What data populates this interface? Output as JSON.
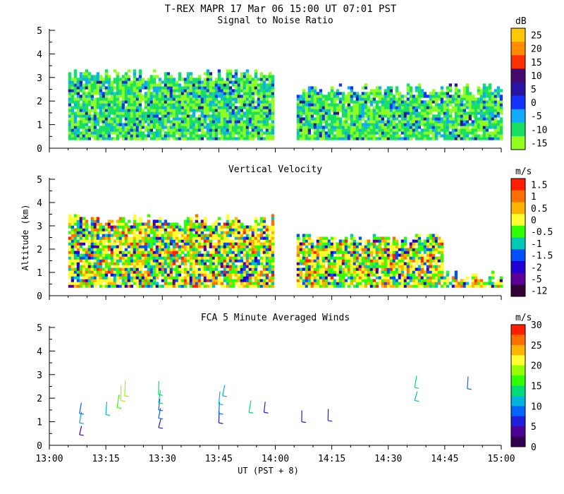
{
  "header": {
    "title": "T-REX   MAPR 17 Mar 06   15:00 UT   07:01   PST"
  },
  "chart_data": [
    {
      "type": "heatmap",
      "title": "Signal to Noise Ratio",
      "ylabel": "",
      "xlabel": "",
      "ylim": [
        0,
        5
      ],
      "yticks": [
        "0",
        "1",
        "2",
        "3",
        "4",
        "5"
      ],
      "colorbar": {
        "unit": "dB",
        "labels": [
          "25",
          "20",
          "15",
          "10",
          "5",
          "0",
          "-5",
          "-10",
          "-15"
        ],
        "colors": [
          "#ffc800",
          "#ff8c00",
          "#ff3000",
          "#460a6e",
          "#2814a0",
          "#1432ff",
          "#10aaff",
          "#18e064",
          "#90ff20"
        ]
      },
      "data_gaps": [
        [
          "13:59",
          "14:05"
        ]
      ],
      "coverage": {
        "top_km": 3.2,
        "bottom_km": 0.35,
        "start": "13:05",
        "end": "15:00"
      },
      "dominant_classes": [
        "-15",
        "-10",
        "-5",
        "0",
        "5"
      ]
    },
    {
      "type": "heatmap",
      "title": "Vertical Velocity",
      "ylabel": "Altitude (km)",
      "xlabel": "",
      "ylim": [
        0,
        5
      ],
      "yticks": [
        "0",
        "1",
        "2",
        "3",
        "4",
        "5"
      ],
      "colorbar": {
        "unit": "m/s",
        "labels": [
          "1.5",
          "1",
          "0.5",
          "0",
          "-0.5",
          "-1",
          "-1.5",
          "-2",
          "-5",
          "-12"
        ],
        "colors": [
          "#ff1e00",
          "#ff6e00",
          "#ffb400",
          "#ffff32",
          "#32ff00",
          "#00c8b4",
          "#0050ff",
          "#1e00d2",
          "#5a0096",
          "#320032"
        ]
      },
      "data_gaps": [
        [
          "13:59",
          "14:05"
        ]
      ],
      "coverage": {
        "top_km": 3.3,
        "bottom_km": 0.35,
        "start": "13:05",
        "end": "15:00"
      }
    },
    {
      "type": "scatter",
      "title": "FCA 5 Minute Averaged Winds",
      "ylabel": "",
      "xlabel": "UT  (PST + 8)",
      "xlim": [
        "13:00",
        "15:00"
      ],
      "ylim": [
        0,
        5
      ],
      "xticks": [
        "13:00",
        "13:15",
        "13:30",
        "13:45",
        "14:00",
        "14:15",
        "14:30",
        "14:45",
        "15:00"
      ],
      "yticks": [
        "0",
        "1",
        "2",
        "3",
        "4",
        "5"
      ],
      "colorbar": {
        "unit": "m/s",
        "labels": [
          "30",
          "25",
          "20",
          "15",
          "10",
          "5",
          "0"
        ],
        "colors": [
          "#ff1e00",
          "#ff6e00",
          "#ffb400",
          "#ffff32",
          "#96ff00",
          "#32ff00",
          "#00dc78",
          "#00b4dc",
          "#0064ff",
          "#1e1edc",
          "#4b0096",
          "#320050"
        ]
      },
      "barbs": [
        {
          "t": "13:08",
          "alt": 0.45,
          "speed": 4
        },
        {
          "t": "13:08",
          "alt": 0.95,
          "speed": 11
        },
        {
          "t": "13:08",
          "alt": 1.35,
          "speed": 9
        },
        {
          "t": "13:15",
          "alt": 1.3,
          "speed": 12
        },
        {
          "t": "13:18",
          "alt": 1.6,
          "speed": 16
        },
        {
          "t": "13:19",
          "alt": 1.9,
          "speed": 18
        },
        {
          "t": "13:20",
          "alt": 2.1,
          "speed": 20
        },
        {
          "t": "13:29",
          "alt": 0.75,
          "speed": 6
        },
        {
          "t": "13:29",
          "alt": 1.15,
          "speed": 7
        },
        {
          "t": "13:29",
          "alt": 1.5,
          "speed": 8
        },
        {
          "t": "13:29",
          "alt": 1.8,
          "speed": 14
        },
        {
          "t": "13:29",
          "alt": 2.15,
          "speed": 13
        },
        {
          "t": "13:45",
          "alt": 0.95,
          "speed": 5
        },
        {
          "t": "13:45",
          "alt": 1.35,
          "speed": 7
        },
        {
          "t": "13:45",
          "alt": 1.75,
          "speed": 11
        },
        {
          "t": "13:46",
          "alt": 2.1,
          "speed": 10
        },
        {
          "t": "13:53",
          "alt": 1.4,
          "speed": 13
        },
        {
          "t": "13:57",
          "alt": 1.4,
          "speed": 5
        },
        {
          "t": "14:07",
          "alt": 1.0,
          "speed": 5
        },
        {
          "t": "14:14",
          "alt": 1.05,
          "speed": 6
        },
        {
          "t": "14:37",
          "alt": 1.9,
          "speed": 10
        },
        {
          "t": "14:37",
          "alt": 2.45,
          "speed": 13
        },
        {
          "t": "14:51",
          "alt": 2.4,
          "speed": 9
        }
      ]
    }
  ]
}
